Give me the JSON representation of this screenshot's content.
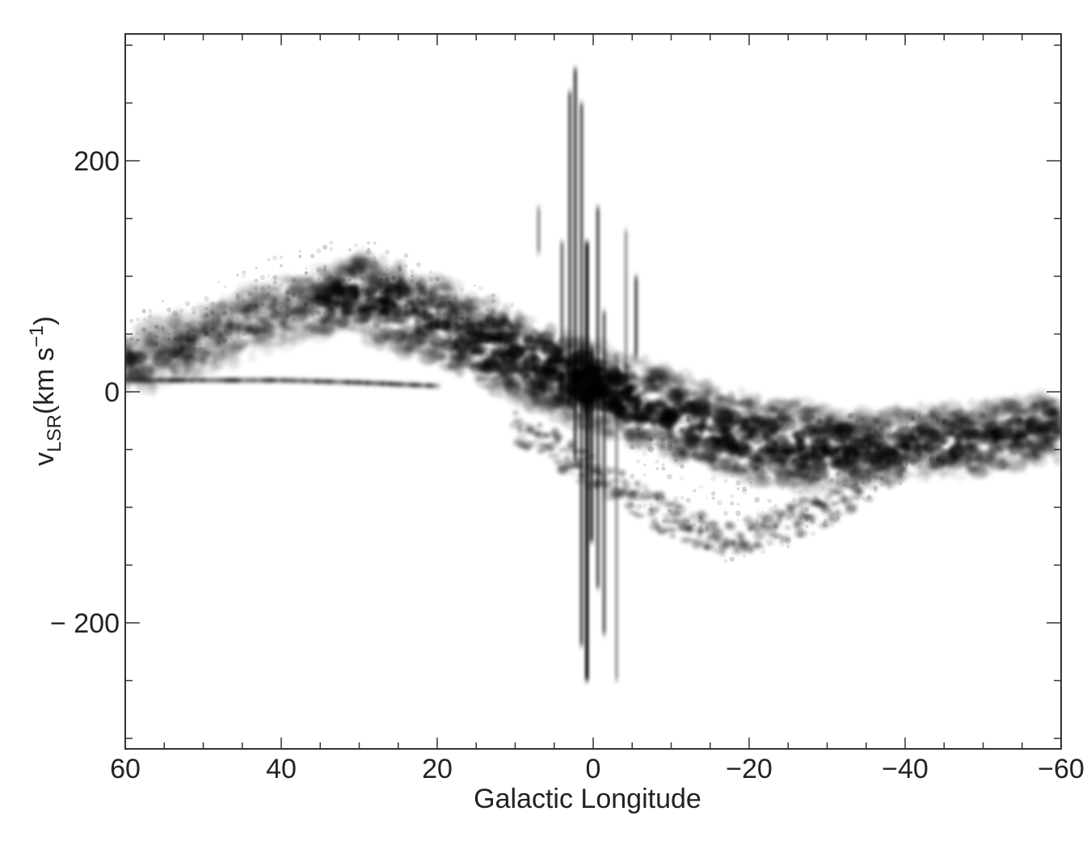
{
  "chart_data": {
    "type": "heatmap",
    "title": "",
    "xlabel": "Galactic Longitude",
    "ylabel": {
      "base": "v",
      "subscript": "LSR",
      "rest": "(km s",
      "superscript": "−1",
      "close": ")"
    },
    "xlim": [
      60,
      -60
    ],
    "ylim": [
      -310,
      310
    ],
    "x_reversed": true,
    "colormap": "white-to-black (grayscale, darker = stronger emission)",
    "grid": false,
    "x_major_ticks": [
      60,
      40,
      20,
      0,
      -20,
      -40,
      -60
    ],
    "x_tick_labels": [
      "60",
      "40",
      "20",
      "0",
      "−20",
      "−40",
      "−60"
    ],
    "x_minor_tick_step": 5,
    "y_major_ticks": [
      200,
      0,
      -200
    ],
    "y_tick_labels": [
      "200",
      "0",
      "− 200"
    ],
    "y_minor_tick_step": 50,
    "features": [
      {
        "name": "galactic disk band",
        "points": [
          [
            60,
            25
          ],
          [
            50,
            45
          ],
          [
            40,
            70
          ],
          [
            30,
            85
          ],
          [
            20,
            60
          ],
          [
            10,
            30
          ],
          [
            0,
            5
          ],
          [
            -10,
            -20
          ],
          [
            -20,
            -40
          ],
          [
            -30,
            -50
          ],
          [
            -40,
            -45
          ],
          [
            -50,
            -40
          ],
          [
            -60,
            -30
          ]
        ]
      },
      {
        "name": "local gas ridge",
        "points": [
          [
            60,
            10
          ],
          [
            40,
            10
          ],
          [
            30,
            8
          ],
          [
            20,
            5
          ]
        ]
      },
      {
        "name": "galactic center vertical feature",
        "l_range": [
          -5,
          5
        ],
        "v_range": [
          -260,
          280
        ]
      },
      {
        "name": "inner galaxy negative-velocity arc",
        "points": [
          [
            10,
            -30
          ],
          [
            0,
            -70
          ],
          [
            -10,
            -110
          ],
          [
            -18,
            -130
          ],
          [
            -30,
            -100
          ],
          [
            -40,
            -60
          ]
        ]
      }
    ]
  }
}
